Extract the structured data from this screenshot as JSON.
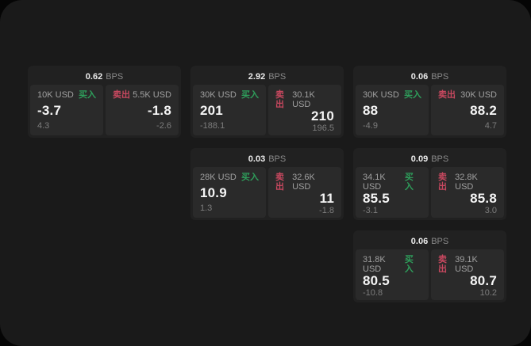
{
  "labels": {
    "bps": "BPS",
    "buy": "买入",
    "sell": "卖出"
  },
  "colors": {
    "buy_green": "#2e9e5b",
    "sell_red": "#c7485f",
    "window_bg": "#1a1a1a",
    "card_bg": "#212121",
    "panel_bg": "#2a2a2a"
  },
  "cards": [
    {
      "bps": "0.62",
      "buy": {
        "amount": "10K USD",
        "price": "-3.7",
        "delta": "4.3"
      },
      "sell": {
        "amount": "5.5K USD",
        "price": "-1.8",
        "delta": "-2.6"
      }
    },
    {
      "bps": "2.92",
      "buy": {
        "amount": "30K USD",
        "price": "201",
        "delta": "-188.1"
      },
      "sell": {
        "amount": "30.1K USD",
        "price": "210",
        "delta": "196.5"
      }
    },
    {
      "bps": "0.06",
      "buy": {
        "amount": "30K USD",
        "price": "88",
        "delta": "-4.9"
      },
      "sell": {
        "amount": "30K USD",
        "price": "88.2",
        "delta": "4.7"
      }
    },
    {
      "bps": "0.03",
      "buy": {
        "amount": "28K USD",
        "price": "10.9",
        "delta": "1.3"
      },
      "sell": {
        "amount": "32.6K USD",
        "price": "11",
        "delta": "-1.8"
      }
    },
    {
      "bps": "0.09",
      "buy": {
        "amount": "34.1K USD",
        "price": "85.5",
        "delta": "-3.1"
      },
      "sell": {
        "amount": "32.8K USD",
        "price": "85.8",
        "delta": "3.0"
      }
    },
    {
      "bps": "0.06",
      "buy": {
        "amount": "31.8K USD",
        "price": "80.5",
        "delta": "-10.8"
      },
      "sell": {
        "amount": "39.1K USD",
        "price": "80.7",
        "delta": "10.2"
      }
    }
  ]
}
